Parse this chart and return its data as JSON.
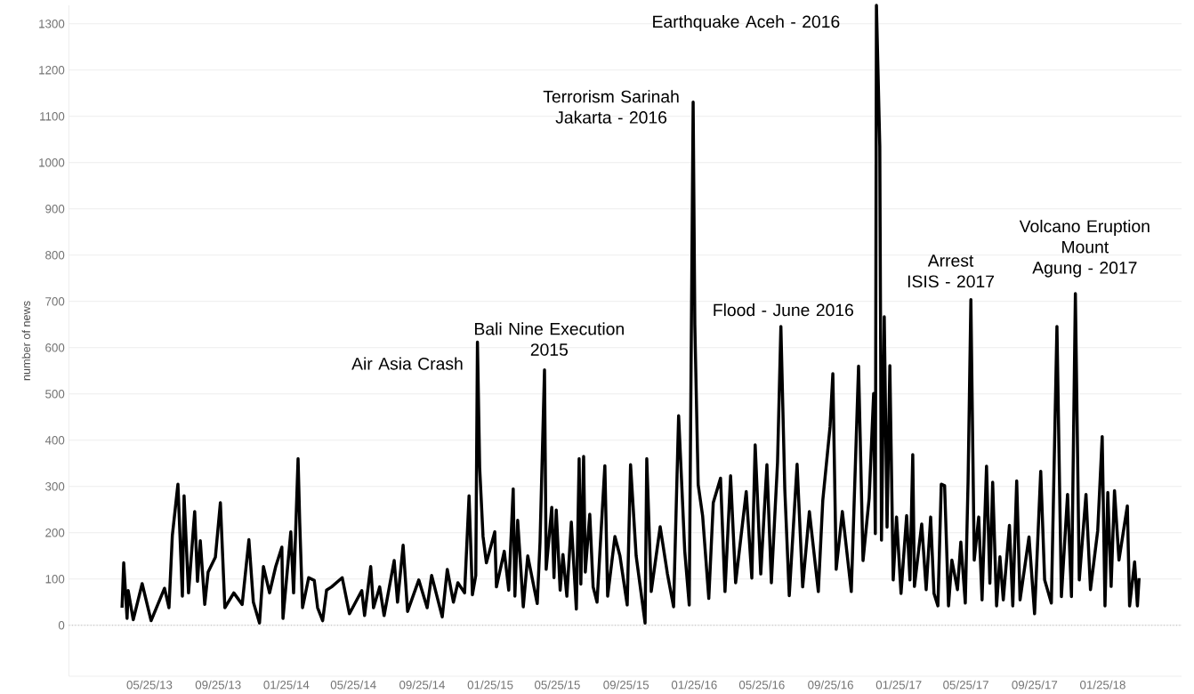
{
  "chart_data": {
    "type": "line",
    "ylabel": "number of news",
    "xlim": [
      "2013-01-01",
      "2018-06-15"
    ],
    "ylim": [
      -110,
      1340
    ],
    "xticks": [
      {
        "value": "2013-05-25",
        "label": "05/25/13"
      },
      {
        "value": "2013-09-25",
        "label": "09/25/13"
      },
      {
        "value": "2014-01-25",
        "label": "01/25/14"
      },
      {
        "value": "2014-05-25",
        "label": "05/25/14"
      },
      {
        "value": "2014-09-25",
        "label": "09/25/14"
      },
      {
        "value": "2015-01-25",
        "label": "01/25/15"
      },
      {
        "value": "2015-05-25",
        "label": "05/25/15"
      },
      {
        "value": "2015-09-25",
        "label": "09/25/15"
      },
      {
        "value": "2016-01-25",
        "label": "01/25/16"
      },
      {
        "value": "2016-05-25",
        "label": "05/25/16"
      },
      {
        "value": "2016-09-25",
        "label": "09/25/16"
      },
      {
        "value": "2017-01-25",
        "label": "01/25/17"
      },
      {
        "value": "2017-05-25",
        "label": "05/25/17"
      },
      {
        "value": "2017-09-25",
        "label": "09/25/17"
      },
      {
        "value": "2018-01-25",
        "label": "01/25/18"
      }
    ],
    "yticks": [
      0,
      100,
      200,
      300,
      400,
      500,
      600,
      700,
      800,
      900,
      1000,
      1100,
      1200,
      1300
    ],
    "grid": "y",
    "line_style": "solid",
    "ref_lines": [
      {
        "axis": "y",
        "value": 0,
        "color": "#9a9a9a",
        "line_style": "dotted"
      }
    ],
    "annotations": [
      {
        "text": "Air Asia Crash",
        "x": "2015-01-02",
        "y": 612
      },
      {
        "text": "Bali Nine Execution\n2015",
        "x": "2015-05-02",
        "y": 552
      },
      {
        "text": "Terrorism Sarinah\nJakarta - 2016",
        "x": "2016-01-23",
        "y": 1131
      },
      {
        "text": "Flood - June 2016",
        "x": "2016-06-28",
        "y": 646
      },
      {
        "text": "Earthquake Aceh - 2016",
        "x": "2016-12-16",
        "y": 1340
      },
      {
        "text": "Arrest\nISIS - 2017",
        "x": "2017-06-03",
        "y": 704
      },
      {
        "text": "Volcano Eruption\nMount\nAgung - 2017",
        "x": "2017-12-07",
        "y": 717
      }
    ],
    "x": [
      "2013-04-06",
      "2013-04-09",
      "2013-04-15",
      "2013-04-17",
      "2013-04-26",
      "2013-05-12",
      "2013-05-28",
      "2013-06-21",
      "2013-06-29",
      "2013-07-05",
      "2013-07-15",
      "2013-07-23",
      "2013-07-26",
      "2013-08-03",
      "2013-08-14",
      "2013-08-19",
      "2013-08-24",
      "2013-09-01",
      "2013-09-07",
      "2013-09-20",
      "2013-09-29",
      "2013-10-07",
      "2013-10-23",
      "2013-11-07",
      "2013-11-19",
      "2013-11-27",
      "2013-12-08",
      "2013-12-15",
      "2013-12-26",
      "2014-01-06",
      "2014-01-17",
      "2014-01-19",
      "2014-02-02",
      "2014-02-07",
      "2014-02-15",
      "2014-02-18",
      "2014-02-23",
      "2014-03-06",
      "2014-03-16",
      "2014-03-22",
      "2014-03-31",
      "2014-04-07",
      "2014-04-16",
      "2014-05-05",
      "2014-05-18",
      "2014-06-09",
      "2014-06-14",
      "2014-06-25",
      "2014-06-30",
      "2014-07-11",
      "2014-07-19",
      "2014-08-06",
      "2014-08-12",
      "2014-08-22",
      "2014-08-30",
      "2014-09-19",
      "2014-10-04",
      "2014-10-12",
      "2014-10-31",
      "2014-11-09",
      "2014-11-20",
      "2014-11-28",
      "2014-12-10",
      "2014-12-18",
      "2014-12-24",
      "2014-12-30",
      "2015-01-02",
      "2015-01-06",
      "2015-01-12",
      "2015-01-18",
      "2015-02-02",
      "2015-02-05",
      "2015-02-19",
      "2015-02-27",
      "2015-03-07",
      "2015-03-10",
      "2015-03-15",
      "2015-03-25",
      "2015-04-02",
      "2015-04-19",
      "2015-04-24",
      "2015-05-02",
      "2015-05-05",
      "2015-05-15",
      "2015-05-19",
      "2015-05-23",
      "2015-05-30",
      "2015-06-04",
      "2015-06-11",
      "2015-06-19",
      "2015-06-28",
      "2015-07-03",
      "2015-07-06",
      "2015-07-11",
      "2015-07-14",
      "2015-07-22",
      "2015-07-28",
      "2015-08-04",
      "2015-08-18",
      "2015-08-23",
      "2015-09-05",
      "2015-09-14",
      "2015-09-27",
      "2015-10-03",
      "2015-10-13",
      "2015-10-29",
      "2015-11-01",
      "2015-11-09",
      "2015-11-25",
      "2015-12-08",
      "2015-12-19",
      "2015-12-28",
      "2016-01-08",
      "2016-01-16",
      "2016-01-23",
      "2016-01-26",
      "2016-02-01",
      "2016-02-09",
      "2016-02-20",
      "2016-02-28",
      "2016-03-12",
      "2016-03-20",
      "2016-03-30",
      "2016-04-08",
      "2016-04-27",
      "2016-05-07",
      "2016-05-13",
      "2016-05-23",
      "2016-06-03",
      "2016-06-11",
      "2016-06-22",
      "2016-06-28",
      "2016-07-05",
      "2016-07-13",
      "2016-07-27",
      "2016-08-06",
      "2016-08-18",
      "2016-09-03",
      "2016-09-11",
      "2016-09-24",
      "2016-09-29",
      "2016-10-05",
      "2016-10-16",
      "2016-11-01",
      "2016-11-14",
      "2016-11-22",
      "2016-12-03",
      "2016-12-11",
      "2016-12-14",
      "2016-12-16",
      "2016-12-22",
      "2016-12-25",
      "2016-12-30",
      "2017-01-04",
      "2017-01-09",
      "2017-01-15",
      "2017-01-21",
      "2017-01-29",
      "2017-02-08",
      "2017-02-14",
      "2017-02-19",
      "2017-02-22",
      "2017-03-07",
      "2017-03-15",
      "2017-03-23",
      "2017-03-29",
      "2017-04-05",
      "2017-04-11",
      "2017-04-17",
      "2017-04-24",
      "2017-04-30",
      "2017-05-10",
      "2017-05-16",
      "2017-05-24",
      "2017-05-29",
      "2017-06-03",
      "2017-06-09",
      "2017-06-17",
      "2017-06-23",
      "2017-07-01",
      "2017-07-07",
      "2017-07-12",
      "2017-07-19",
      "2017-07-25",
      "2017-07-31",
      "2017-08-11",
      "2017-08-17",
      "2017-08-24",
      "2017-08-30",
      "2017-09-15",
      "2017-09-25",
      "2017-10-06",
      "2017-10-13",
      "2017-10-25",
      "2017-11-04",
      "2017-11-12",
      "2017-11-23",
      "2017-11-30",
      "2017-12-07",
      "2017-12-14",
      "2017-12-26",
      "2018-01-03",
      "2018-01-16",
      "2018-01-24",
      "2018-01-29",
      "2018-02-03",
      "2018-02-09",
      "2018-02-15",
      "2018-02-23",
      "2018-03-10",
      "2018-03-14",
      "2018-03-23",
      "2018-03-28",
      "2018-03-31"
    ],
    "series": [
      {
        "color": "#000000",
        "values": [
          38,
          135,
          15,
          75,
          12,
          90,
          10,
          80,
          38,
          194,
          305,
          63,
          280,
          70,
          246,
          95,
          183,
          45,
          115,
          147,
          265,
          38,
          70,
          45,
          185,
          50,
          5,
          127,
          70,
          127,
          169,
          15,
          202,
          70,
          360,
          221,
          38,
          103,
          97,
          38,
          10,
          76,
          83,
          103,
          25,
          75,
          21,
          127,
          38,
          83,
          21,
          140,
          50,
          173,
          30,
          98,
          38,
          108,
          18,
          121,
          50,
          92,
          70,
          280,
          66,
          108,
          612,
          340,
          192,
          135,
          202,
          83,
          160,
          76,
          295,
          63,
          227,
          40,
          150,
          47,
          180,
          552,
          121,
          255,
          103,
          249,
          76,
          153,
          63,
          223,
          35,
          360,
          89,
          365,
          115,
          240,
          83,
          50,
          345,
          63,
          192,
          150,
          44,
          347,
          150,
          5,
          360,
          73,
          213,
          111,
          40,
          453,
          160,
          44,
          1131,
          650,
          304,
          236,
          58,
          265,
          318,
          73,
          323,
          92,
          289,
          102,
          390,
          111,
          347,
          92,
          352,
          646,
          294,
          64,
          348,
          83,
          246,
          73,
          270,
          429,
          544,
          121,
          246,
          73,
          560,
          140,
          275,
          501,
          198,
          1340,
          1035,
          184,
          667,
          212,
          561,
          98,
          234,
          69,
          237,
          98,
          369,
          84,
          219,
          77,
          234,
          69,
          42,
          305,
          302,
          42,
          141,
          77,
          180,
          48,
          312,
          704,
          141,
          234,
          55,
          344,
          91,
          309,
          42,
          148,
          55,
          216,
          42,
          312,
          55,
          191,
          25,
          333,
          98,
          48,
          646,
          62,
          283,
          62,
          717,
          98,
          283,
          77,
          205,
          408,
          42,
          287,
          84,
          291,
          141,
          258,
          42,
          137,
          42,
          102
        ]
      }
    ]
  }
}
